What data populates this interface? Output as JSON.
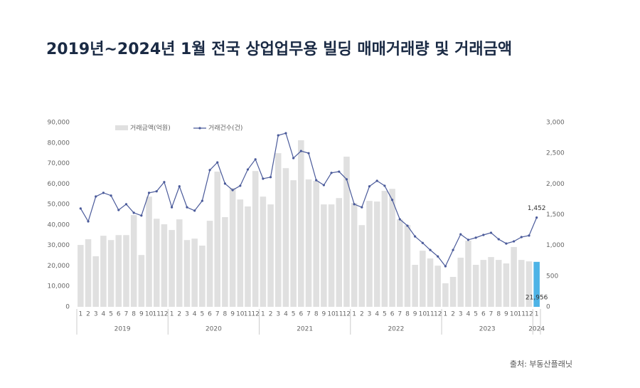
{
  "chart_data": {
    "type": "bar-line",
    "title": "2019년~2024년 1월 전국 상업업무용 빌딩 매매거래량 및 거래금액",
    "source": "출처: 부동산플래닛",
    "categories": [
      "1",
      "2",
      "3",
      "4",
      "5",
      "6",
      "7",
      "8",
      "9",
      "10",
      "11",
      "12",
      "1",
      "2",
      "3",
      "4",
      "5",
      "6",
      "7",
      "8",
      "9",
      "10",
      "11",
      "12",
      "1",
      "2",
      "3",
      "4",
      "5",
      "6",
      "7",
      "8",
      "9",
      "10",
      "11",
      "12",
      "1",
      "2",
      "3",
      "4",
      "5",
      "6",
      "7",
      "8",
      "9",
      "10",
      "11",
      "12",
      "1",
      "2",
      "3",
      "4",
      "5",
      "6",
      "7",
      "8",
      "9",
      "10",
      "11",
      "12",
      "1"
    ],
    "category_groups": [
      {
        "name": "2019",
        "size": 12
      },
      {
        "name": "2020",
        "size": 12
      },
      {
        "name": "2021",
        "size": 12
      },
      {
        "name": "2022",
        "size": 12
      },
      {
        "name": "2023",
        "size": 12
      },
      {
        "name": "2024",
        "size": 1
      }
    ],
    "series": [
      {
        "name": "거래금액(억원)",
        "type": "bar",
        "axis": "y",
        "color": "#e0e0e0",
        "colors": [
          "#e0e0e0",
          "#e0e0e0",
          "#e0e0e0",
          "#e0e0e0",
          "#e0e0e0",
          "#e0e0e0",
          "#e0e0e0",
          "#e0e0e0",
          "#e0e0e0",
          "#e0e0e0",
          "#e0e0e0",
          "#e0e0e0",
          "#e0e0e0",
          "#e0e0e0",
          "#e0e0e0",
          "#e0e0e0",
          "#e0e0e0",
          "#e0e0e0",
          "#e0e0e0",
          "#e0e0e0",
          "#e0e0e0",
          "#e0e0e0",
          "#e0e0e0",
          "#e0e0e0",
          "#e0e0e0",
          "#e0e0e0",
          "#e0e0e0",
          "#e0e0e0",
          "#e0e0e0",
          "#e0e0e0",
          "#e0e0e0",
          "#e0e0e0",
          "#e0e0e0",
          "#e0e0e0",
          "#e0e0e0",
          "#e0e0e0",
          "#e0e0e0",
          "#e0e0e0",
          "#e0e0e0",
          "#e0e0e0",
          "#e0e0e0",
          "#e0e0e0",
          "#e0e0e0",
          "#e0e0e0",
          "#e0e0e0",
          "#e0e0e0",
          "#e0e0e0",
          "#e0e0e0",
          "#e0e0e0",
          "#e0e0e0",
          "#e0e0e0",
          "#e0e0e0",
          "#e0e0e0",
          "#e0e0e0",
          "#e0e0e0",
          "#e0e0e0",
          "#e0e0e0",
          "#e0e0e0",
          "#e0e0e0",
          "#e0e0e0",
          "#4db3e6"
        ],
        "values": [
          30200,
          33000,
          24700,
          34700,
          32600,
          35000,
          35000,
          44800,
          25300,
          53800,
          43000,
          40300,
          37500,
          42700,
          32600,
          33300,
          29900,
          42000,
          66000,
          43800,
          58000,
          52400,
          49000,
          66300,
          53800,
          50000,
          75000,
          67700,
          61800,
          81300,
          62200,
          61500,
          50000,
          50000,
          53100,
          73300,
          50700,
          39900,
          51700,
          51400,
          56600,
          57600,
          42700,
          39900,
          20500,
          27400,
          23600,
          20100,
          11500,
          14600,
          24000,
          32300,
          20500,
          22900,
          24300,
          22900,
          21200,
          29200,
          22900,
          22200,
          21956
        ],
        "value_labels": [
          null,
          null,
          null,
          null,
          null,
          null,
          null,
          null,
          null,
          null,
          null,
          null,
          null,
          null,
          null,
          null,
          null,
          null,
          null,
          null,
          null,
          null,
          null,
          null,
          null,
          null,
          null,
          null,
          null,
          null,
          null,
          null,
          null,
          null,
          null,
          null,
          null,
          null,
          null,
          null,
          null,
          null,
          null,
          null,
          null,
          null,
          null,
          null,
          null,
          null,
          null,
          null,
          null,
          null,
          null,
          null,
          null,
          null,
          null,
          null,
          "21,956"
        ]
      },
      {
        "name": "거래건수(건)",
        "type": "line",
        "axis": "y2",
        "color": "#4a5a9a",
        "values": [
          1600,
          1390,
          1795,
          1855,
          1810,
          1575,
          1670,
          1530,
          1485,
          1855,
          1880,
          2030,
          1620,
          1960,
          1620,
          1565,
          1725,
          2225,
          2350,
          2005,
          1900,
          1970,
          2235,
          2400,
          2085,
          2110,
          2790,
          2825,
          2420,
          2535,
          2500,
          2060,
          1980,
          2180,
          2200,
          2075,
          1670,
          1620,
          1960,
          2050,
          1970,
          1740,
          1425,
          1320,
          1145,
          1040,
          925,
          820,
          660,
          925,
          1180,
          1090,
          1125,
          1170,
          1205,
          1100,
          1030,
          1065,
          1135,
          1160,
          1452
        ],
        "value_labels": [
          null,
          null,
          null,
          null,
          null,
          null,
          null,
          null,
          null,
          null,
          null,
          null,
          null,
          null,
          null,
          null,
          null,
          null,
          null,
          null,
          null,
          null,
          null,
          null,
          null,
          null,
          null,
          null,
          null,
          null,
          null,
          null,
          null,
          null,
          null,
          null,
          null,
          null,
          null,
          null,
          null,
          null,
          null,
          null,
          null,
          null,
          null,
          null,
          null,
          null,
          null,
          null,
          null,
          null,
          null,
          null,
          null,
          null,
          null,
          null,
          "1,452"
        ]
      }
    ],
    "ylim": [
      0,
      90000
    ],
    "yticks": [
      0,
      {
        "value": 10000,
        "label": "10,000"
      },
      {
        "value": 20000,
        "label": "20,000"
      },
      {
        "value": 30000,
        "label": "30,000"
      },
      {
        "value": 40000,
        "label": "40,000"
      },
      {
        "value": 50000,
        "label": "50,000"
      },
      {
        "value": 60000,
        "label": "60,000"
      },
      {
        "value": 70000,
        "label": "70,000"
      },
      {
        "value": 80000,
        "label": "80,000"
      },
      {
        "value": 90000,
        "label": "90,000"
      }
    ],
    "y2lim": [
      0,
      3000
    ],
    "y2ticks": [
      0,
      500,
      {
        "value": 1000,
        "label": "1,000"
      },
      {
        "value": 1500,
        "label": "1,500"
      },
      {
        "value": 2000,
        "label": "2,000"
      },
      {
        "value": 2500,
        "label": "2,500"
      },
      {
        "value": 3000,
        "label": "3,000"
      }
    ],
    "legend": "top-left"
  }
}
